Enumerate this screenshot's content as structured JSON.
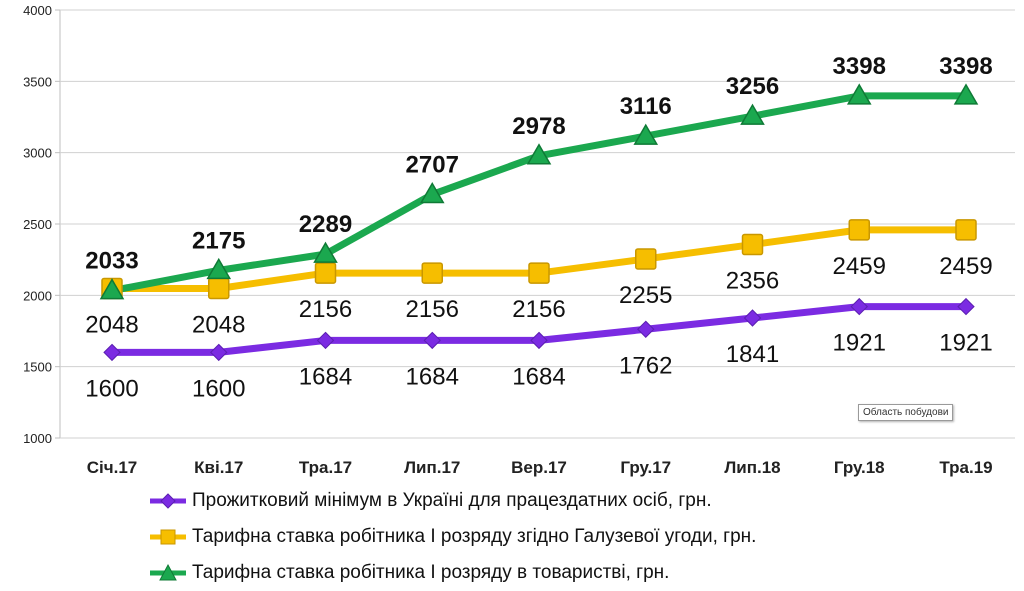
{
  "chart_data": {
    "type": "line",
    "categories": [
      "Січ.17",
      "Кві.17",
      "Тра.17",
      "Лип.17",
      "Вер.17",
      "Гру.17",
      "Лип.18",
      "Гру.18",
      "Тра.19"
    ],
    "ylim": [
      1000,
      4000
    ],
    "yticks": [
      1000,
      1500,
      2000,
      2500,
      3000,
      3500,
      4000
    ],
    "grid": "horizontal",
    "legend_position": "bottom",
    "series": [
      {
        "name": "Прожитковий мінімум в Україні для працездатних осіб, грн.",
        "color": "#7B2BE2",
        "marker": "diamond",
        "values": [
          1600,
          1600,
          1684,
          1684,
          1684,
          1762,
          1841,
          1921,
          1921
        ]
      },
      {
        "name": "Тарифна ставка робітника  І розряду згідно Галузевої угоди, грн.",
        "color": "#F6BE00",
        "marker": "square",
        "values": [
          2048,
          2048,
          2156,
          2156,
          2156,
          2255,
          2356,
          2459,
          2459
        ]
      },
      {
        "name": "Тарифна ставка робітника  І розряду в товаристві, грн.",
        "color": "#1BA84F",
        "marker": "triangle",
        "values": [
          2033,
          2175,
          2289,
          2707,
          2978,
          3116,
          3256,
          3398,
          3398
        ]
      }
    ]
  },
  "tooltip": "Область побудови"
}
